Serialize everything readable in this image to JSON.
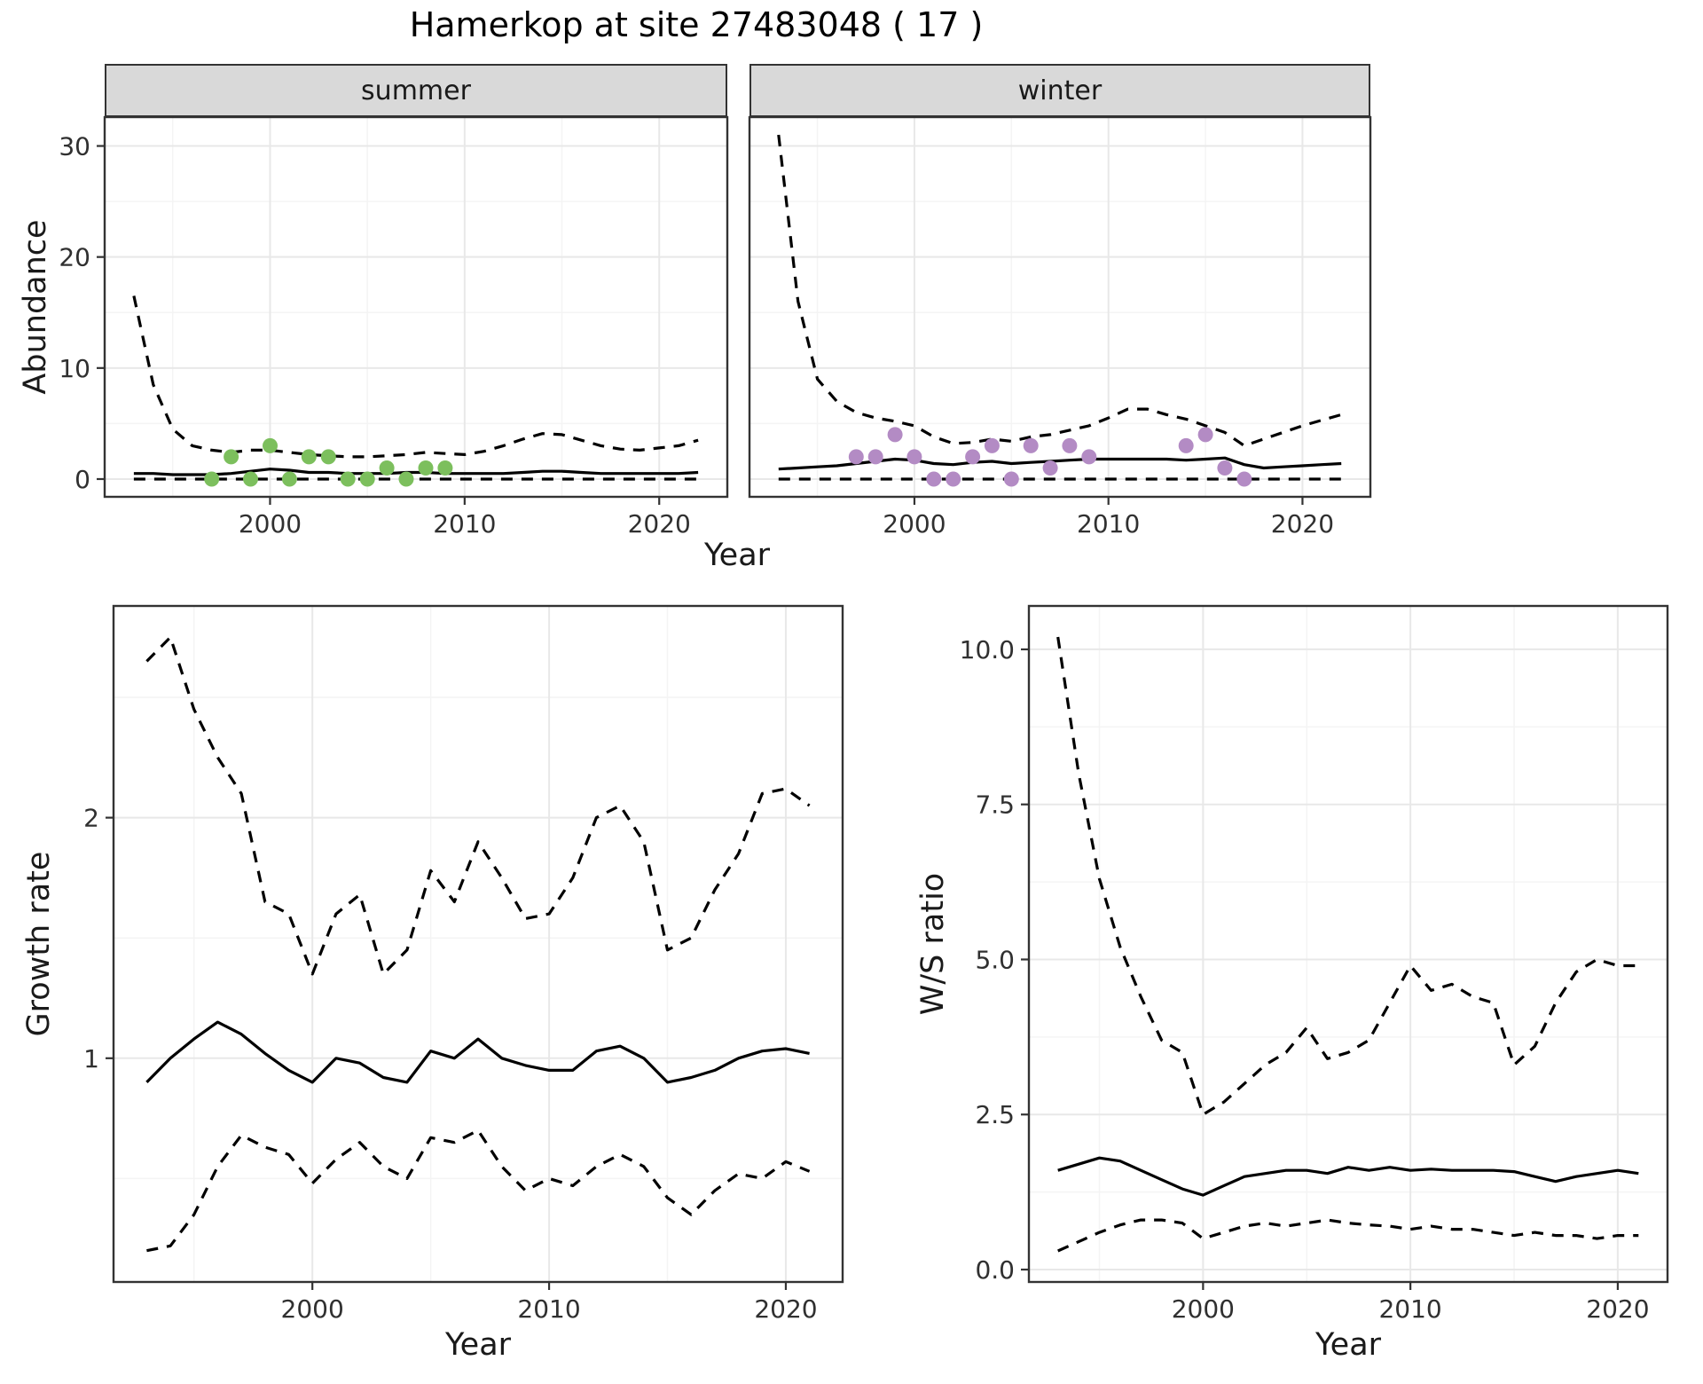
{
  "title": "Hamerkop at site 27483048 ( 17 )",
  "facets": [
    "summer",
    "winter"
  ],
  "axes": {
    "year": "Year",
    "abundance": "Abundance",
    "growth": "Growth rate",
    "ws": "W/S ratio"
  },
  "colors": {
    "summer_points": "#7cbf5d",
    "winter_points": "#b38bc4",
    "line": "#000000",
    "strip_bg": "#d9d9d9",
    "grid_major": "#e8e8e8",
    "grid_minor": "#f4f4f4",
    "panel_border": "#333333",
    "tick_text": "#303030"
  },
  "chart_data": [
    {
      "type": "line",
      "title": "Abundance, summer facet",
      "facet": "summer",
      "xlabel": "Year",
      "ylabel": "Abundance",
      "xlim": [
        1991.5,
        2023.5
      ],
      "ylim": [
        -1.6,
        32.6
      ],
      "xticks": [
        2000,
        2010,
        2020
      ],
      "xtick_labels": [
        "2000",
        "2010",
        "2020"
      ],
      "ytick_values": [
        0,
        10,
        20,
        30
      ],
      "ytick_labels": [
        "0",
        "10",
        "20",
        "30"
      ],
      "grid": true,
      "x": [
        1993,
        1994,
        1995,
        1996,
        1997,
        1998,
        1999,
        2000,
        2001,
        2002,
        2003,
        2004,
        2005,
        2006,
        2007,
        2008,
        2009,
        2010,
        2011,
        2012,
        2013,
        2014,
        2015,
        2016,
        2017,
        2018,
        2019,
        2020,
        2021,
        2022
      ],
      "series": [
        {
          "name": "upper_ci",
          "linetype": "dashed",
          "values": [
            16.5,
            8.5,
            4.5,
            3.0,
            2.6,
            2.4,
            2.6,
            2.6,
            2.4,
            2.2,
            2.1,
            2.0,
            2.0,
            2.1,
            2.2,
            2.4,
            2.3,
            2.2,
            2.5,
            3.0,
            3.6,
            4.1,
            4.0,
            3.5,
            3.0,
            2.7,
            2.6,
            2.8,
            3.0,
            3.5
          ]
        },
        {
          "name": "median",
          "linetype": "solid",
          "values": [
            0.5,
            0.5,
            0.4,
            0.4,
            0.4,
            0.5,
            0.7,
            0.9,
            0.8,
            0.6,
            0.6,
            0.5,
            0.5,
            0.5,
            0.6,
            0.6,
            0.5,
            0.5,
            0.5,
            0.5,
            0.6,
            0.7,
            0.7,
            0.6,
            0.5,
            0.5,
            0.5,
            0.5,
            0.5,
            0.6
          ]
        },
        {
          "name": "lower_ci",
          "linetype": "dashed",
          "values": [
            0,
            0,
            0,
            0,
            0,
            0,
            0,
            0,
            0,
            0,
            0,
            0,
            0,
            0,
            0,
            0,
            0,
            0,
            0,
            0,
            0,
            0,
            0,
            0,
            0,
            0,
            0,
            0,
            0,
            0
          ]
        }
      ],
      "points": {
        "color": "#7cbf5d",
        "x": [
          1997,
          1998,
          1999,
          2000,
          2001,
          2002,
          2003,
          2004,
          2005,
          2006,
          2007,
          2008,
          2009
        ],
        "y": [
          0,
          2,
          0,
          3,
          0,
          2,
          2,
          0,
          0,
          1,
          0,
          1,
          1
        ]
      }
    },
    {
      "type": "line",
      "title": "Abundance, winter facet",
      "facet": "winter",
      "xlabel": "Year",
      "ylabel": "Abundance",
      "xlim": [
        1991.5,
        2023.5
      ],
      "ylim": [
        -1.6,
        32.6
      ],
      "xticks": [
        2000,
        2010,
        2020
      ],
      "xtick_labels": [
        "2000",
        "2010",
        "2020"
      ],
      "ytick_values": [
        0,
        10,
        20,
        30
      ],
      "ytick_labels": [
        "0",
        "10",
        "20",
        "30"
      ],
      "grid": true,
      "x": [
        1993,
        1994,
        1995,
        1996,
        1997,
        1998,
        1999,
        2000,
        2001,
        2002,
        2003,
        2004,
        2005,
        2006,
        2007,
        2008,
        2009,
        2010,
        2011,
        2012,
        2013,
        2014,
        2015,
        2016,
        2017,
        2018,
        2019,
        2020,
        2021,
        2022
      ],
      "series": [
        {
          "name": "upper_ci",
          "linetype": "dashed",
          "values": [
            31,
            16,
            9,
            7,
            6,
            5.5,
            5.2,
            4.8,
            3.8,
            3.2,
            3.3,
            3.6,
            3.4,
            3.8,
            4.0,
            4.4,
            4.8,
            5.5,
            6.3,
            6.3,
            5.8,
            5.4,
            4.8,
            4.2,
            3.0,
            3.6,
            4.2,
            4.8,
            5.3,
            5.8
          ]
        },
        {
          "name": "median",
          "linetype": "solid",
          "values": [
            0.9,
            1.0,
            1.1,
            1.2,
            1.4,
            1.6,
            1.8,
            1.7,
            1.4,
            1.3,
            1.5,
            1.6,
            1.4,
            1.5,
            1.6,
            1.7,
            1.8,
            1.8,
            1.8,
            1.8,
            1.8,
            1.7,
            1.8,
            1.9,
            1.3,
            1.0,
            1.1,
            1.2,
            1.3,
            1.4
          ]
        },
        {
          "name": "lower_ci",
          "linetype": "dashed",
          "values": [
            0,
            0,
            0,
            0,
            0,
            0,
            0,
            0,
            0,
            0,
            0,
            0,
            0,
            0,
            0,
            0,
            0,
            0,
            0,
            0,
            0,
            0,
            0,
            0,
            0,
            0,
            0,
            0,
            0,
            0
          ]
        }
      ],
      "points": {
        "color": "#b38bc4",
        "x": [
          1997,
          1998,
          1999,
          2000,
          2001,
          2002,
          2003,
          2004,
          2005,
          2006,
          2007,
          2008,
          2009,
          2014,
          2015,
          2016,
          2017
        ],
        "y": [
          2,
          2,
          4,
          2,
          0,
          0,
          2,
          3,
          0,
          3,
          1,
          3,
          2,
          3,
          4,
          1,
          0
        ]
      }
    },
    {
      "type": "line",
      "title": "Growth rate",
      "facet": null,
      "xlabel": "Year",
      "ylabel": "Growth rate",
      "xlim": [
        1991.6,
        2022.4
      ],
      "ylim": [
        0.07,
        2.88
      ],
      "xticks": [
        2000,
        2010,
        2020
      ],
      "xtick_labels": [
        "2000",
        "2010",
        "2020"
      ],
      "ytick_values": [
        1,
        2
      ],
      "ytick_labels": [
        "1",
        "2"
      ],
      "grid": true,
      "x": [
        1993,
        1994,
        1995,
        1996,
        1997,
        1998,
        1999,
        2000,
        2001,
        2002,
        2003,
        2004,
        2005,
        2006,
        2007,
        2008,
        2009,
        2010,
        2011,
        2012,
        2013,
        2014,
        2015,
        2016,
        2017,
        2018,
        2019,
        2020,
        2021
      ],
      "series": [
        {
          "name": "upper_ci",
          "linetype": "dashed",
          "values": [
            2.65,
            2.75,
            2.45,
            2.25,
            2.1,
            1.65,
            1.6,
            1.35,
            1.6,
            1.68,
            1.35,
            1.45,
            1.78,
            1.65,
            1.9,
            1.75,
            1.58,
            1.6,
            1.75,
            2.0,
            2.05,
            1.9,
            1.45,
            1.5,
            1.7,
            1.85,
            2.1,
            2.12,
            2.05
          ]
        },
        {
          "name": "median",
          "linetype": "solid",
          "values": [
            0.9,
            1.0,
            1.08,
            1.15,
            1.1,
            1.02,
            0.95,
            0.9,
            1.0,
            0.98,
            0.92,
            0.9,
            1.03,
            1.0,
            1.08,
            1.0,
            0.97,
            0.95,
            0.95,
            1.03,
            1.05,
            1.0,
            0.9,
            0.92,
            0.95,
            1.0,
            1.03,
            1.04,
            1.02
          ]
        },
        {
          "name": "lower_ci",
          "linetype": "dashed",
          "values": [
            0.2,
            0.22,
            0.35,
            0.55,
            0.68,
            0.63,
            0.6,
            0.48,
            0.58,
            0.65,
            0.55,
            0.5,
            0.67,
            0.65,
            0.7,
            0.55,
            0.45,
            0.5,
            0.47,
            0.55,
            0.6,
            0.55,
            0.42,
            0.35,
            0.45,
            0.52,
            0.5,
            0.57,
            0.53
          ]
        }
      ],
      "points": null
    },
    {
      "type": "line",
      "title": "W/S ratio",
      "facet": null,
      "xlabel": "Year",
      "ylabel": "W/S ratio",
      "xlim": [
        1991.6,
        2022.4
      ],
      "ylim": [
        -0.2,
        10.7
      ],
      "xticks": [
        2000,
        2010,
        2020
      ],
      "xtick_labels": [
        "2000",
        "2010",
        "2020"
      ],
      "ytick_values": [
        0,
        2.5,
        5,
        7.5,
        10
      ],
      "ytick_labels": [
        "0.0",
        "2.5",
        "5.0",
        "7.5",
        "10.0"
      ],
      "grid": true,
      "x": [
        1993,
        1994,
        1995,
        1996,
        1997,
        1998,
        1999,
        2000,
        2001,
        2002,
        2003,
        2004,
        2005,
        2006,
        2007,
        2008,
        2009,
        2010,
        2011,
        2012,
        2013,
        2014,
        2015,
        2016,
        2017,
        2018,
        2019,
        2020,
        2021
      ],
      "series": [
        {
          "name": "upper_ci",
          "linetype": "dashed",
          "values": [
            10.2,
            8.0,
            6.3,
            5.2,
            4.4,
            3.7,
            3.5,
            2.5,
            2.7,
            3.0,
            3.3,
            3.5,
            3.9,
            3.4,
            3.5,
            3.7,
            4.3,
            4.9,
            4.5,
            4.6,
            4.4,
            4.3,
            3.3,
            3.6,
            4.3,
            4.8,
            5.0,
            4.9,
            4.9
          ]
        },
        {
          "name": "median",
          "linetype": "solid",
          "values": [
            1.6,
            1.7,
            1.8,
            1.75,
            1.6,
            1.45,
            1.3,
            1.2,
            1.35,
            1.5,
            1.55,
            1.6,
            1.6,
            1.55,
            1.65,
            1.6,
            1.65,
            1.6,
            1.62,
            1.6,
            1.6,
            1.6,
            1.58,
            1.5,
            1.42,
            1.5,
            1.55,
            1.6,
            1.55
          ]
        },
        {
          "name": "lower_ci",
          "linetype": "dashed",
          "values": [
            0.3,
            0.45,
            0.6,
            0.72,
            0.8,
            0.8,
            0.75,
            0.5,
            0.6,
            0.7,
            0.75,
            0.7,
            0.75,
            0.8,
            0.75,
            0.72,
            0.7,
            0.65,
            0.7,
            0.65,
            0.65,
            0.6,
            0.55,
            0.6,
            0.55,
            0.55,
            0.5,
            0.55,
            0.55
          ]
        }
      ],
      "points": null
    }
  ]
}
